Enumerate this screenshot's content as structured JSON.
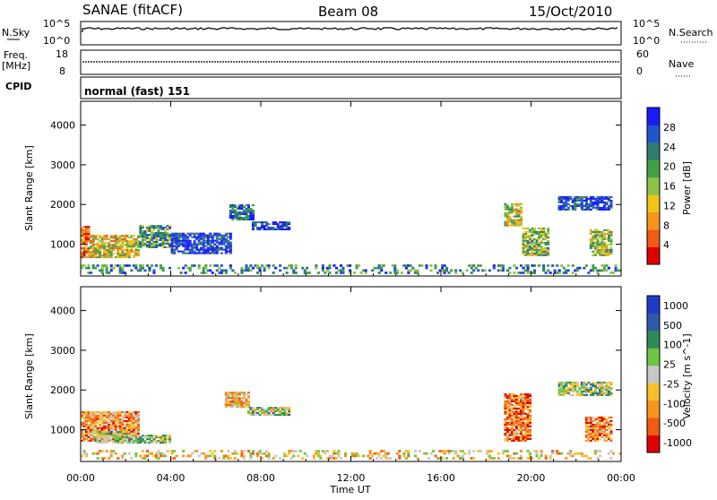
{
  "header": {
    "station": "SANAE (fitACF)",
    "beam": "Beam 08",
    "date": "15/Oct/2010"
  },
  "strips": {
    "nsky_label": "N.Sky",
    "nsky_ticks": [
      "10^5",
      "10^0"
    ],
    "nsearch_label": "N.Search",
    "nsearch_ticks": [
      "10^5",
      "10^0"
    ],
    "freq_label": "Freq.",
    "freq_unit": "[MHz]",
    "freq_ticks": [
      "18",
      "8"
    ],
    "nave_label": "Nave",
    "nave_ticks": [
      "60",
      "0"
    ],
    "cpid_label": "CPID",
    "cpid_text": "normal (fast) 151"
  },
  "chart_data": [
    {
      "type": "heatmap",
      "name": "power",
      "ylabel": "Slant Range [km]",
      "xlabel": "",
      "ylim": [
        200,
        4600
      ],
      "yticks": [
        1000,
        2000,
        3000,
        4000
      ],
      "colorbar_label": "Power [dB]",
      "colorbar_ticks": [
        4,
        8,
        12,
        16,
        20,
        24,
        28
      ],
      "colorscale": [
        "#1a1aff",
        "#2255cc",
        "#2e7d6e",
        "#43a047",
        "#8bc34a",
        "#f0c419",
        "#f7941d",
        "#f05a12",
        "#e00000"
      ],
      "regions": [
        {
          "t": [
            0.0,
            0.4
          ],
          "r": [
            650,
            1450
          ],
          "level": 0.75
        },
        {
          "t": [
            0.4,
            2.6
          ],
          "r": [
            650,
            1200
          ],
          "level": 0.6
        },
        {
          "t": [
            2.6,
            4.0
          ],
          "r": [
            900,
            1450
          ],
          "level": 0.35
        },
        {
          "t": [
            4.0,
            6.6
          ],
          "r": [
            750,
            1250
          ],
          "level": 0.1
        },
        {
          "t": [
            6.6,
            7.6
          ],
          "r": [
            1600,
            2000
          ],
          "level": 0.2
        },
        {
          "t": [
            7.6,
            9.2
          ],
          "r": [
            1350,
            1550
          ],
          "level": 0.1
        },
        {
          "t": [
            18.8,
            19.6
          ],
          "r": [
            1450,
            2000
          ],
          "level": 0.55
        },
        {
          "t": [
            19.6,
            20.8
          ],
          "r": [
            700,
            1400
          ],
          "level": 0.45
        },
        {
          "t": [
            21.2,
            23.6
          ],
          "r": [
            1850,
            2200
          ],
          "level": 0.15
        },
        {
          "t": [
            22.6,
            23.6
          ],
          "r": [
            700,
            1350
          ],
          "level": 0.5
        },
        {
          "t": [
            0.0,
            24.0
          ],
          "r": [
            250,
            450
          ],
          "level": 0.3
        }
      ]
    },
    {
      "type": "heatmap",
      "name": "velocity",
      "ylabel": "Slant Range [km]",
      "xlabel": "Time UT",
      "ylim": [
        200,
        4600
      ],
      "yticks": [
        1000,
        2000,
        3000,
        4000
      ],
      "xticks": [
        "00:00",
        "04:00",
        "08:00",
        "12:00",
        "16:00",
        "20:00",
        "00:00"
      ],
      "xlim_hours": [
        0,
        24
      ],
      "colorbar_label": "Velocity [m s^-1]",
      "colorbar_ticks": [
        "1000",
        "500",
        "100",
        "25",
        "-25",
        "-100",
        "-500",
        "-1000"
      ],
      "colorscale": [
        "#1f3cc8",
        "#2e5aa8",
        "#2e8b57",
        "#6cc644",
        "#c8c8c8",
        "#f6c02a",
        "#f7941d",
        "#f05a12",
        "#e00000"
      ],
      "regions": [
        {
          "t": [
            0.0,
            2.6
          ],
          "r": [
            700,
            1450
          ],
          "level": 0.7
        },
        {
          "t": [
            0.6,
            2.0
          ],
          "r": [
            650,
            950
          ],
          "level": 0.45
        },
        {
          "t": [
            2.0,
            4.0
          ],
          "r": [
            650,
            850
          ],
          "level": 0.45
        },
        {
          "t": [
            6.4,
            7.4
          ],
          "r": [
            1550,
            1950
          ],
          "level": 0.65
        },
        {
          "t": [
            7.4,
            9.2
          ],
          "r": [
            1350,
            1550
          ],
          "level": 0.45
        },
        {
          "t": [
            18.8,
            20.0
          ],
          "r": [
            700,
            1900
          ],
          "level": 0.75
        },
        {
          "t": [
            21.2,
            23.6
          ],
          "r": [
            1850,
            2200
          ],
          "level": 0.45
        },
        {
          "t": [
            22.4,
            23.6
          ],
          "r": [
            700,
            1300
          ],
          "level": 0.75
        },
        {
          "t": [
            0.0,
            24.0
          ],
          "r": [
            250,
            450
          ],
          "level": 0.6
        }
      ]
    }
  ]
}
